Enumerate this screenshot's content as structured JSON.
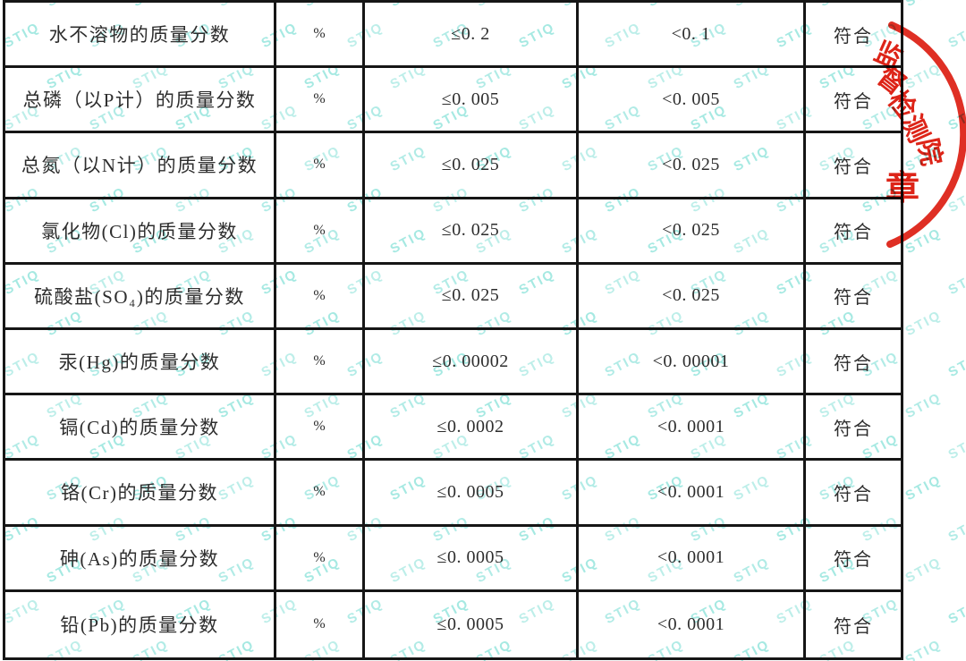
{
  "table": {
    "rows": [
      {
        "name": "水不溶物的质量分数",
        "unit": "%",
        "limit": "≤0. 2",
        "result": "<0. 1",
        "conclusion": "符合"
      },
      {
        "name": "总磷（以P计）的质量分数",
        "unit": "%",
        "limit": "≤0. 005",
        "result": "<0. 005",
        "conclusion": "符合"
      },
      {
        "name": "总氮（以N计）的质量分数",
        "unit": "%",
        "limit": "≤0. 025",
        "result": "<0. 025",
        "conclusion": "符合"
      },
      {
        "name": "氯化物(Cl)的质量分数",
        "unit": "%",
        "limit": "≤0. 025",
        "result": "<0. 025",
        "conclusion": "符合"
      },
      {
        "name": "硫酸盐(SO₄)的质量分数",
        "unit": "%",
        "limit": "≤0. 025",
        "result": "<0. 025",
        "conclusion": "符合"
      },
      {
        "name": "汞(Hg)的质量分数",
        "unit": "%",
        "limit": "≤0. 00002",
        "result": "<0. 00001",
        "conclusion": "符合"
      },
      {
        "name": "镉(Cd)的质量分数",
        "unit": "%",
        "limit": "≤0. 0002",
        "result": "<0. 0001",
        "conclusion": "符合"
      },
      {
        "name": "铬(Cr)的质量分数",
        "unit": "%",
        "limit": "≤0. 0005",
        "result": "<0. 0001",
        "conclusion": "符合"
      },
      {
        "name": "砷(As)的质量分数",
        "unit": "%",
        "limit": "≤0. 0005",
        "result": "<0. 0001",
        "conclusion": "符合"
      },
      {
        "name": "铅(Pb)的质量分数",
        "unit": "%",
        "limit": "≤0. 0005",
        "result": "<0. 0001",
        "conclusion": "符合"
      }
    ]
  },
  "watermark": {
    "text": "STIQ",
    "color": "#55d5c8"
  },
  "stamp": {
    "arc_chars": [
      "监",
      "督",
      "检",
      "测",
      "院"
    ],
    "seal_char": "章",
    "color": "#dd2418"
  }
}
